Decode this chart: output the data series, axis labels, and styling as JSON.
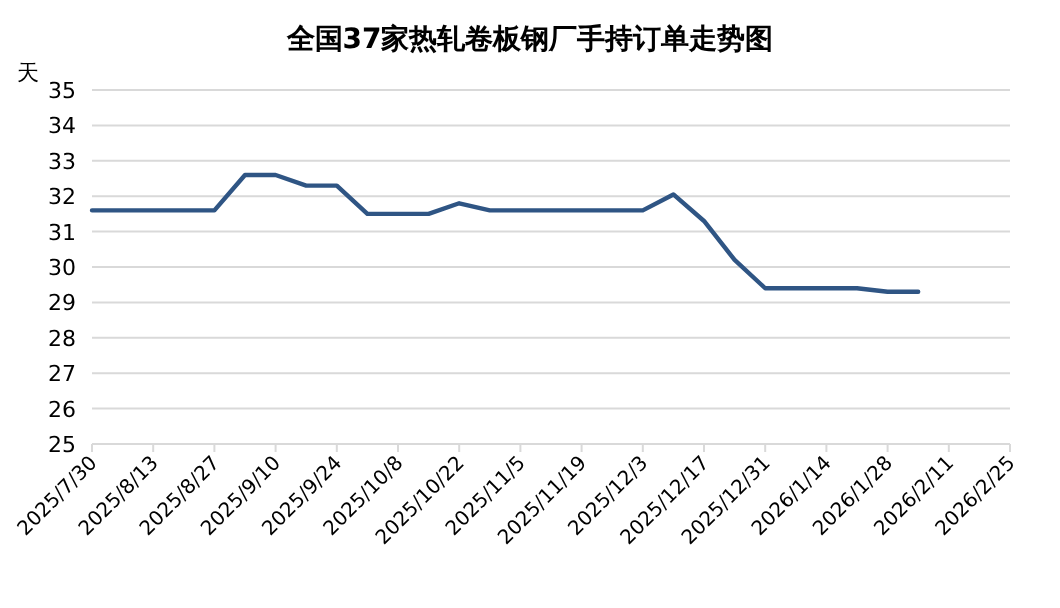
{
  "chart_data": {
    "type": "line",
    "title": "全国37家热轧卷板钢厂手持订单走势图",
    "ylabel": "天",
    "x": [
      "2025-07-30",
      "2025-08-06",
      "2025-08-13",
      "2025-08-20",
      "2025-08-27",
      "2025-09-03",
      "2025-09-10",
      "2025-09-17",
      "2025-09-24",
      "2025-10-01",
      "2025-10-08",
      "2025-10-15",
      "2025-10-22",
      "2025-10-29",
      "2025-11-05",
      "2025-11-12",
      "2025-11-19",
      "2025-11-26",
      "2025-12-03",
      "2025-12-10",
      "2025-12-17",
      "2025-12-24",
      "2025-12-31",
      "2026-01-07",
      "2026-01-14",
      "2026-01-21",
      "2026-01-28",
      "2026-02-04"
    ],
    "series": [
      {
        "color": "#2f5584",
        "values": [
          31.6,
          31.6,
          31.6,
          31.6,
          31.6,
          32.6,
          32.6,
          32.3,
          32.3,
          31.5,
          31.5,
          31.5,
          31.8,
          31.6,
          31.6,
          31.6,
          31.6,
          31.6,
          31.6,
          32.05,
          31.3,
          30.2,
          29.4,
          29.4,
          29.4,
          29.4,
          29.3,
          29.3
        ]
      }
    ],
    "xlim": [
      "2025-07-30",
      "2026-02-25"
    ],
    "xticks": [
      {
        "value": "2025-07-30",
        "label": "2025/7/30"
      },
      {
        "value": "2025-08-13",
        "label": "2025/8/13"
      },
      {
        "value": "2025-08-27",
        "label": "2025/8/27"
      },
      {
        "value": "2025-09-10",
        "label": "2025/9/10"
      },
      {
        "value": "2025-09-24",
        "label": "2025/9/24"
      },
      {
        "value": "2025-10-08",
        "label": "2025/10/8"
      },
      {
        "value": "2025-10-22",
        "label": "2025/10/22"
      },
      {
        "value": "2025-11-05",
        "label": "2025/11/5"
      },
      {
        "value": "2025-11-19",
        "label": "2025/11/19"
      },
      {
        "value": "2025-12-03",
        "label": "2025/12/3"
      },
      {
        "value": "2025-12-17",
        "label": "2025/12/17"
      },
      {
        "value": "2025-12-31",
        "label": "2025/12/31"
      },
      {
        "value": "2026-01-14",
        "label": "2026/1/14"
      },
      {
        "value": "2026-01-28",
        "label": "2026/1/28"
      },
      {
        "value": "2026-02-11",
        "label": "2026/2/11"
      },
      {
        "value": "2026-02-25",
        "label": "2026/2/25"
      }
    ],
    "ylim": [
      25,
      35
    ],
    "yticks": [
      25,
      26,
      27,
      28,
      29,
      30,
      31,
      32,
      33,
      34,
      35
    ],
    "grid": "y",
    "marker": "none",
    "line_style": "solid"
  }
}
